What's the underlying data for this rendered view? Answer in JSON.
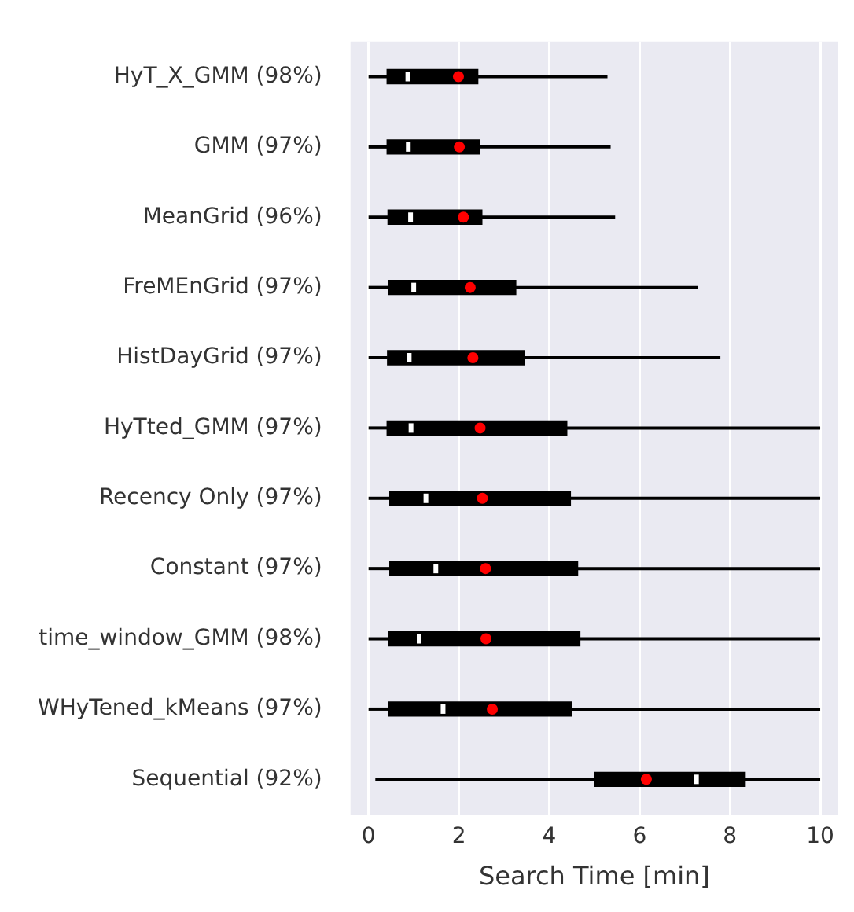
{
  "chart_data": {
    "type": "box",
    "orientation": "horizontal",
    "xlabel": "Search Time [min]",
    "grid": "x",
    "color": "#000000",
    "categories": [
      "HyT_X_GMM (98%)",
      "GMM (97%)",
      "MeanGrid (96%)",
      "FreMEnGrid (97%)",
      "HistDayGrid (97%)",
      "HyTted_GMM (97%)",
      "Recency Only (97%)",
      "Constant (97%)",
      "time_window_GMM (98%)",
      "WHyTened_kMeans (97%)",
      "Sequential (92%)"
    ],
    "boxes": [
      {
        "low": 0,
        "q1": 0.41,
        "median": 0.87,
        "q3": 2.42,
        "high": 5.29,
        "mean": 1.99
      },
      {
        "low": 0,
        "q1": 0.41,
        "median": 0.88,
        "q3": 2.46,
        "high": 5.36,
        "mean": 2.01
      },
      {
        "low": 0,
        "q1": 0.43,
        "median": 0.93,
        "q3": 2.51,
        "high": 5.46,
        "mean": 2.1
      },
      {
        "low": 0,
        "q1": 0.45,
        "median": 1.0,
        "q3": 3.26,
        "high": 7.3,
        "mean": 2.25
      },
      {
        "low": 0,
        "q1": 0.42,
        "median": 0.9,
        "q3": 3.45,
        "high": 7.79,
        "mean": 2.31
      },
      {
        "low": 0,
        "q1": 0.41,
        "median": 0.94,
        "q3": 4.39,
        "high": 10,
        "mean": 2.47
      },
      {
        "low": 0,
        "q1": 0.47,
        "median": 1.27,
        "q3": 4.47,
        "high": 10,
        "mean": 2.52
      },
      {
        "low": 0,
        "q1": 0.47,
        "median": 1.49,
        "q3": 4.63,
        "high": 10,
        "mean": 2.59
      },
      {
        "low": 0,
        "q1": 0.45,
        "median": 1.12,
        "q3": 4.68,
        "high": 10,
        "mean": 2.6
      },
      {
        "low": 0,
        "q1": 0.45,
        "median": 1.65,
        "q3": 4.5,
        "high": 10,
        "mean": 2.74
      },
      {
        "low": 0.15,
        "q1": 5.0,
        "median": 7.26,
        "q3": 8.34,
        "high": 10,
        "mean": 6.15
      }
    ],
    "xlim": [
      -0.4,
      10.4
    ],
    "xticks": [
      0,
      2,
      4,
      6,
      8,
      10
    ]
  }
}
